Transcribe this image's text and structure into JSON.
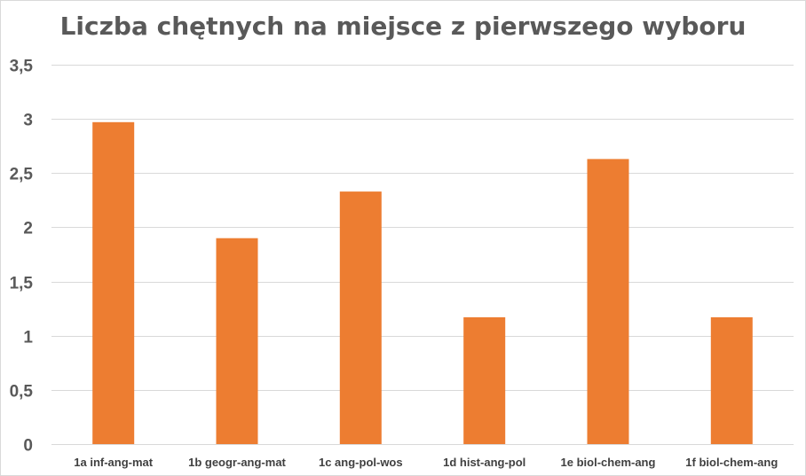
{
  "chart_data": {
    "type": "bar",
    "title": "Liczba chętnych na miejsce z pierwszego wyboru",
    "xlabel": "",
    "ylabel": "",
    "categories": [
      "1a inf-ang-mat",
      "1b geogr-ang-mat",
      "1c ang-pol-wos",
      "1d hist-ang-pol",
      "1e biol-chem-ang",
      "1f biol-chem-ang"
    ],
    "values": [
      2.97,
      1.9,
      2.33,
      1.17,
      2.63,
      1.17
    ],
    "ylim": [
      0,
      3.5
    ],
    "yticks": [
      0,
      0.5,
      1,
      1.5,
      2,
      2.5,
      3,
      3.5
    ],
    "ytick_labels": [
      "0",
      "0,5",
      "1",
      "1,5",
      "2",
      "2,5",
      "3",
      "3,5"
    ],
    "grid": true,
    "legend": "none",
    "bar_color": "#ed7d31"
  }
}
